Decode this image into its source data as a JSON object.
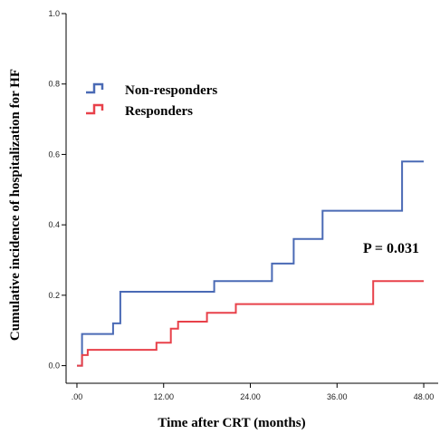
{
  "chart_data": {
    "type": "line",
    "step": true,
    "xlabel": "Time after CRT (months)",
    "ylabel": "Cumulative incidence of hospitalization for HF",
    "xlim": [
      -1.5,
      50
    ],
    "ylim": [
      -0.05,
      1.0
    ],
    "xticks": [
      0,
      12,
      24,
      36,
      48
    ],
    "xtick_labels": [
      ".00",
      "12.00",
      "24.00",
      "36.00",
      "48.00"
    ],
    "yticks": [
      0.0,
      0.2,
      0.4,
      0.6,
      0.8,
      1.0
    ],
    "ytick_labels": [
      "0.0",
      "0.2",
      "0.4",
      "0.6",
      "0.8",
      "1.0"
    ],
    "grid": false,
    "legend_position": "upper-left",
    "annotation": "P = 0.031",
    "series": [
      {
        "name": "Non-responders",
        "color": "#4a6ab5",
        "x": [
          0,
          0.7,
          0.7,
          5.0,
          5.0,
          6.0,
          6.0,
          19.0,
          19.0,
          27.0,
          27.0,
          30.0,
          30.0,
          34.0,
          34.0,
          45.0,
          45.0,
          48.0
        ],
        "y": [
          0.0,
          0.0,
          0.09,
          0.09,
          0.12,
          0.12,
          0.21,
          0.21,
          0.24,
          0.24,
          0.29,
          0.29,
          0.36,
          0.36,
          0.44,
          0.44,
          0.58,
          0.58
        ]
      },
      {
        "name": "Responders",
        "color": "#e8414a",
        "x": [
          0,
          0.7,
          0.7,
          1.5,
          1.5,
          11.0,
          11.0,
          13.0,
          13.0,
          14.0,
          14.0,
          18.0,
          18.0,
          22.0,
          22.0,
          41.0,
          41.0,
          48.0
        ],
        "y": [
          0.0,
          0.0,
          0.03,
          0.03,
          0.045,
          0.045,
          0.065,
          0.065,
          0.105,
          0.105,
          0.125,
          0.125,
          0.15,
          0.15,
          0.175,
          0.175,
          0.24,
          0.24
        ]
      }
    ]
  }
}
